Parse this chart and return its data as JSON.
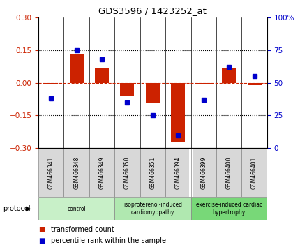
{
  "title": "GDS3596 / 1423252_at",
  "samples": [
    "GSM466341",
    "GSM466348",
    "GSM466349",
    "GSM466350",
    "GSM466351",
    "GSM466394",
    "GSM466399",
    "GSM466400",
    "GSM466401"
  ],
  "red_bars": [
    -0.005,
    0.13,
    0.07,
    -0.06,
    -0.09,
    -0.27,
    -0.005,
    0.07,
    -0.01
  ],
  "blue_dots": [
    38,
    75,
    68,
    35,
    25,
    10,
    37,
    62,
    55
  ],
  "groups": [
    {
      "label": "control",
      "start": 0,
      "end": 3,
      "color": "#c8f0c8"
    },
    {
      "label": "isoproterenol-induced\ncardiomyopathy",
      "start": 3,
      "end": 6,
      "color": "#b0e8b0"
    },
    {
      "label": "exercise-induced cardiac\nhypertrophy",
      "start": 6,
      "end": 9,
      "color": "#78d878"
    }
  ],
  "ylim_left": [
    -0.3,
    0.3
  ],
  "ylim_right": [
    0,
    100
  ],
  "yticks_left": [
    -0.3,
    -0.15,
    0,
    0.15,
    0.3
  ],
  "yticks_right": [
    0,
    25,
    50,
    75,
    100
  ],
  "red_color": "#cc2200",
  "blue_color": "#0000cc",
  "bar_width": 0.55,
  "legend_red": "transformed count",
  "legend_blue": "percentile rank within the sample",
  "protocol_label": "protocol",
  "xlim": [
    -0.5,
    8.5
  ]
}
